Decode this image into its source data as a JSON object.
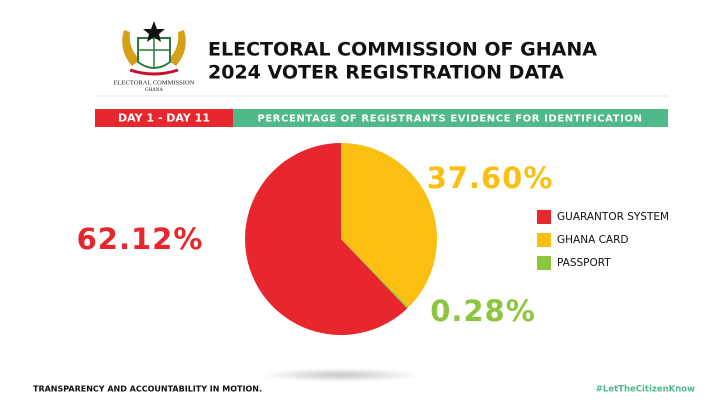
{
  "header": {
    "logo_text": [
      "ELECTORAL COMMISSION",
      "GHANA"
    ],
    "title": [
      "ELECTORAL COMMISSION OF GHANA",
      "2024 VOTER REGISTRATION DATA"
    ]
  },
  "chart_data": {
    "type": "pie",
    "period": "DAY 1 - DAY 11",
    "subtitle": "PERCENTAGE OF REGISTRANTS EVIDENCE FOR IDENTIFICATION",
    "categories": [
      "GUARANTOR SYSTEM",
      "GHANA CARD",
      "PASSPORT"
    ],
    "values": [
      62.12,
      37.6,
      0.28
    ],
    "value_labels": [
      "62.12%",
      "37.60%",
      "0.28%"
    ],
    "colors": [
      "#e8262d",
      "#fbbf12",
      "#8cc63f"
    ],
    "legend": "right"
  },
  "footer": {
    "tagline": "TRANSPARENCY AND ACCOUNTABILITY IN MOTION.",
    "hashtag": "#LetTheCitizenKnow"
  }
}
